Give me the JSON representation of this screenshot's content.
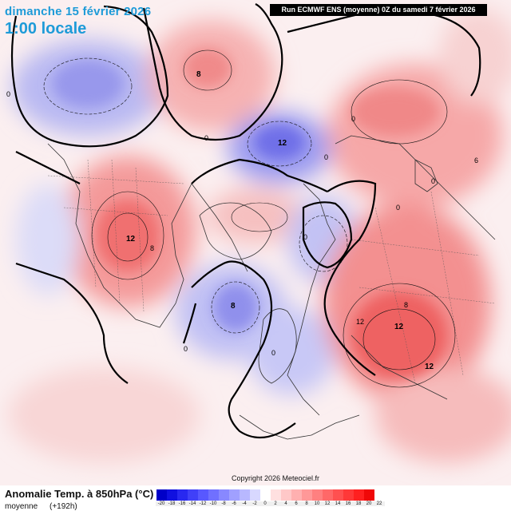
{
  "header": {
    "date": "dimanche 15 février 2026",
    "time": "1:00 locale",
    "run": "Run ECMWF ENS (moyenne) 0Z du samedi 7 février 2026"
  },
  "map": {
    "projection": "polar-stereographic-north",
    "contour_labels": [
      "8",
      "0",
      "0",
      "12",
      "8",
      "12",
      "0",
      "0",
      "0",
      "8",
      "12",
      "0",
      "0",
      "0",
      "0",
      "0",
      "8",
      "12",
      "12",
      "12",
      "6",
      "0",
      "0",
      "0",
      "0"
    ],
    "anomaly_centers": [
      {
        "sign": "positive",
        "label": "8"
      },
      {
        "sign": "positive",
        "label": "12"
      },
      {
        "sign": "negative",
        "label": "12"
      },
      {
        "sign": "negative",
        "label": "8"
      },
      {
        "sign": "positive",
        "label": "12"
      },
      {
        "sign": "positive",
        "label": "12"
      }
    ]
  },
  "legend": {
    "title": "Anomalie Temp. à 850hPa (°C)",
    "subtitle_left": "moyenne",
    "subtitle_right": "(+192h)",
    "scale_values": [
      "-20",
      "-18",
      "-16",
      "-14",
      "-12",
      "-10",
      "-8",
      "-6",
      "-4",
      "-2",
      "0",
      "2",
      "4",
      "6",
      "8",
      "10",
      "12",
      "14",
      "16",
      "18",
      "20",
      "22"
    ],
    "colors": [
      "#0000c8",
      "#1010e0",
      "#2828f0",
      "#4040f8",
      "#5858ff",
      "#7070ff",
      "#8888ff",
      "#a0a0ff",
      "#b8b8ff",
      "#d8d8ff",
      "#ffffff",
      "#ffe0e0",
      "#ffc8c8",
      "#ffb0b0",
      "#ff9898",
      "#ff8080",
      "#ff6868",
      "#ff5050",
      "#ff3838",
      "#ff2020",
      "#f00808"
    ]
  },
  "copyright": "Copyright 2026 Meteociel.fr"
}
